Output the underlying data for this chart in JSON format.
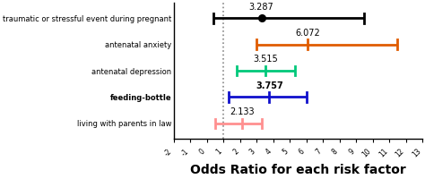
{
  "categories": [
    "traumatic or stressful event during pregnant",
    "antenatal anxiety",
    "antenatal depression",
    "feeding-bottle",
    "living with parents in law"
  ],
  "OR": [
    3.287,
    6.072,
    3.515,
    3.757,
    2.133
  ],
  "CI_low": [
    0.4,
    3.0,
    1.8,
    1.3,
    0.5
  ],
  "CI_high": [
    9.5,
    11.5,
    5.3,
    6.0,
    3.3
  ],
  "colors": [
    "#000000",
    "#E05C00",
    "#00C87A",
    "#1010CC",
    "#FF9090"
  ],
  "markers": [
    "o",
    "|",
    "|",
    "|",
    "|"
  ],
  "dashed_line_x": 1.0,
  "xlim": [
    -2,
    13
  ],
  "xticks": [
    -2,
    -1,
    0,
    1,
    2,
    3,
    4,
    5,
    6,
    7,
    8,
    9,
    10,
    11,
    12,
    13
  ],
  "xlabel": "Odds Ratio for each risk factor",
  "xlabel_fontsize": 10,
  "xlabel_fontweight": "bold",
  "background_color": "#ffffff",
  "label_values": [
    "3.287",
    "6.072",
    "3.515",
    "3.757",
    "2.133"
  ],
  "cat_bold": [
    false,
    false,
    false,
    true,
    false
  ]
}
